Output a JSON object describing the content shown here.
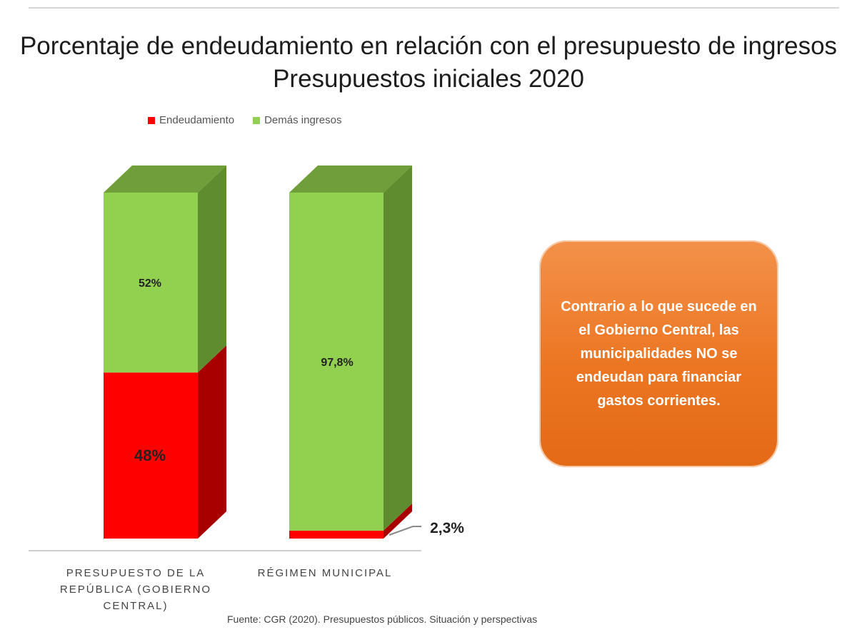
{
  "title": "Porcentaje de endeudamiento en relación con el presupuesto de ingresos Presupuestos iniciales 2020",
  "legend": [
    {
      "label": "Endeudamiento",
      "color": "#ff0000"
    },
    {
      "label": "Demás ingresos",
      "color": "#92d050"
    }
  ],
  "categories": [
    "PRESUPUESTO DE LA REPÚBLICA (GOBIERNO CENTRAL)",
    "RÉGIMEN MUNICIPAL"
  ],
  "callout": "Contrario a lo que sucede en el Gobierno Central, las municipalidades NO se endeudan para financiar gastos corrientes.",
  "source": "Fuente: CGR (2020). Presupuestos públicos. Situación y perspectivas",
  "chart_data": {
    "type": "bar",
    "stacked": true,
    "three_d": true,
    "title": "Porcentaje de endeudamiento en relación con el presupuesto de ingresos Presupuestos iniciales 2020",
    "categories": [
      "PRESUPUESTO DE LA REPÚBLICA (GOBIERNO CENTRAL)",
      "RÉGIMEN MUNICIPAL"
    ],
    "series": [
      {
        "name": "Endeudamiento",
        "values": [
          48,
          2.3
        ],
        "labels": [
          "48%",
          "2,3%"
        ],
        "color": "#ff0000"
      },
      {
        "name": "Demás ingresos",
        "values": [
          52,
          97.8
        ],
        "labels": [
          "52%",
          "97,8%"
        ],
        "color": "#92d050"
      }
    ],
    "ylim": [
      0,
      100
    ],
    "legend_position": "top",
    "grid": false
  }
}
